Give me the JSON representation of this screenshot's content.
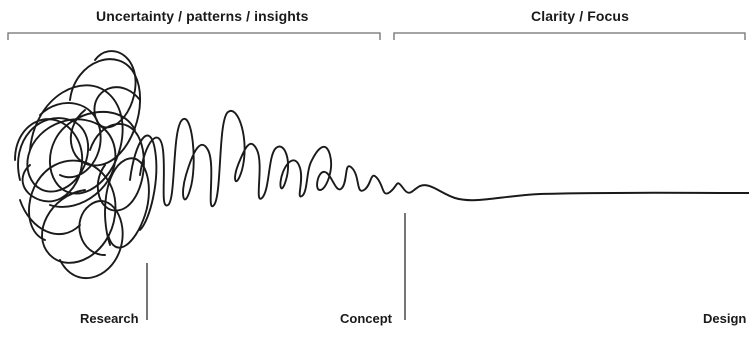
{
  "phases": [
    {
      "label": "Uncertainty / patterns / insights"
    },
    {
      "label": "Clarity / Focus"
    }
  ],
  "stages": [
    {
      "label": "Research"
    },
    {
      "label": "Concept"
    },
    {
      "label": "Design"
    }
  ],
  "colors": {
    "line": "#1a1a1a",
    "bracket": "#6e6e6e",
    "background": "#ffffff"
  }
}
